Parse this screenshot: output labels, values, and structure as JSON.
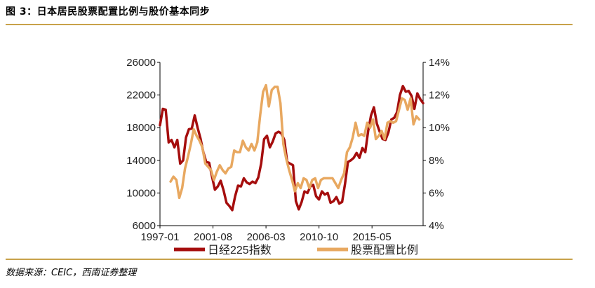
{
  "figure": {
    "title": "图 3：日本居民股票配置比例与股价基本同步",
    "source": "数据来源：CEIC，西南证券整理"
  },
  "chart_data": {
    "type": "line",
    "x_ticks": [
      "1997-01",
      "2001-08",
      "2006-03",
      "2010-10",
      "2015-05"
    ],
    "y_left": {
      "lim": [
        6000,
        26000
      ],
      "ticks": [
        6000,
        10000,
        14000,
        18000,
        22000,
        26000
      ],
      "tick_labels": [
        "6000",
        "10000",
        "14000",
        "18000",
        "22000",
        "26000"
      ]
    },
    "y_right": {
      "lim": [
        4,
        14
      ],
      "ticks": [
        4,
        6,
        8,
        10,
        12,
        14
      ],
      "tick_labels": [
        "4%",
        "6%",
        "8%",
        "10%",
        "12%",
        "14%"
      ]
    },
    "grid": false,
    "legend_position": "bottom",
    "series": [
      {
        "name": "日经225指数",
        "axis": "left",
        "color": "#a50d0d",
        "x": [
          "1997-01",
          "1997-04",
          "1997-07",
          "1997-10",
          "1998-01",
          "1998-04",
          "1998-07",
          "1998-10",
          "1999-01",
          "1999-04",
          "1999-07",
          "1999-10",
          "2000-01",
          "2000-04",
          "2000-07",
          "2000-10",
          "2001-01",
          "2001-04",
          "2001-07",
          "2001-10",
          "2002-01",
          "2002-04",
          "2002-07",
          "2002-10",
          "2003-01",
          "2003-04",
          "2003-07",
          "2003-10",
          "2004-01",
          "2004-04",
          "2004-07",
          "2004-10",
          "2005-01",
          "2005-04",
          "2005-07",
          "2005-10",
          "2006-01",
          "2006-04",
          "2006-07",
          "2006-10",
          "2007-01",
          "2007-04",
          "2007-07",
          "2007-10",
          "2008-01",
          "2008-04",
          "2008-07",
          "2008-10",
          "2009-01",
          "2009-04",
          "2009-07",
          "2009-10",
          "2010-01",
          "2010-04",
          "2010-07",
          "2010-10",
          "2011-01",
          "2011-04",
          "2011-07",
          "2011-10",
          "2012-01",
          "2012-04",
          "2012-07",
          "2012-10",
          "2013-01",
          "2013-04",
          "2013-07",
          "2013-10",
          "2014-01",
          "2014-04",
          "2014-07",
          "2014-10",
          "2015-01",
          "2015-04",
          "2015-07",
          "2015-10",
          "2016-01",
          "2016-04",
          "2016-07",
          "2016-10",
          "2017-01",
          "2017-04",
          "2017-07",
          "2017-10",
          "2018-01",
          "2018-04",
          "2018-07",
          "2018-10",
          "2019-01",
          "2019-04",
          "2019-07",
          "2019-10"
        ],
        "values": [
          18300,
          20300,
          20200,
          16200,
          16500,
          15600,
          16500,
          13600,
          14000,
          16800,
          17800,
          17900,
          19500,
          18000,
          16700,
          15000,
          13800,
          13700,
          12000,
          10400,
          10800,
          11500,
          10300,
          8800,
          8400,
          7900,
          9600,
          10900,
          10800,
          11800,
          11300,
          11100,
          11400,
          11200,
          11900,
          13600,
          16600,
          17000,
          15600,
          16300,
          17300,
          17500,
          17300,
          16500,
          13800,
          13600,
          13400,
          9000,
          7990,
          8900,
          10200,
          10000,
          10800,
          11000,
          9600,
          9200,
          10200,
          9800,
          10000,
          8800,
          9000,
          9500,
          8700,
          8900,
          11100,
          13800,
          14000,
          14300,
          14900,
          14300,
          15500,
          15000,
          17600,
          19500,
          20500,
          18500,
          17500,
          16600,
          16500,
          17400,
          19000,
          19200,
          19900,
          22000,
          23100,
          22400,
          22500,
          21900,
          20300,
          22200,
          21500,
          21000
        ]
      },
      {
        "name": "股票配置比例",
        "axis": "right",
        "color": "#e8a860",
        "x": [
          "1997-12",
          "1998-03",
          "1998-06",
          "1998-09",
          "1998-12",
          "1999-03",
          "1999-06",
          "1999-09",
          "1999-12",
          "2000-03",
          "2000-06",
          "2000-09",
          "2000-12",
          "2001-03",
          "2001-06",
          "2001-09",
          "2001-12",
          "2002-03",
          "2002-06",
          "2002-09",
          "2002-12",
          "2003-03",
          "2003-06",
          "2003-09",
          "2003-12",
          "2004-03",
          "2004-06",
          "2004-09",
          "2004-12",
          "2005-03",
          "2005-06",
          "2005-09",
          "2005-12",
          "2006-03",
          "2006-06",
          "2006-09",
          "2006-12",
          "2007-03",
          "2007-06",
          "2007-09",
          "2007-12",
          "2008-03",
          "2008-06",
          "2008-09",
          "2008-12",
          "2009-03",
          "2009-06",
          "2009-09",
          "2009-12",
          "2010-03",
          "2010-06",
          "2010-09",
          "2010-12",
          "2011-03",
          "2011-06",
          "2011-09",
          "2011-12",
          "2012-03",
          "2012-06",
          "2012-09",
          "2012-12",
          "2013-03",
          "2013-06",
          "2013-09",
          "2013-12",
          "2014-03",
          "2014-06",
          "2014-09",
          "2014-12",
          "2015-03",
          "2015-06",
          "2015-09",
          "2015-12",
          "2016-03",
          "2016-06",
          "2016-09",
          "2016-12",
          "2017-03",
          "2017-06",
          "2017-09",
          "2017-12",
          "2018-03",
          "2018-06",
          "2018-09",
          "2018-12",
          "2019-03",
          "2019-06"
        ],
        "values": [
          6.7,
          7.0,
          6.8,
          5.7,
          6.3,
          7.5,
          8.2,
          9.0,
          9.9,
          9.5,
          9.2,
          8.8,
          7.8,
          7.6,
          7.4,
          6.8,
          7.3,
          7.7,
          7.4,
          7.2,
          7.5,
          7.6,
          8.6,
          8.5,
          8.5,
          9.2,
          8.8,
          8.6,
          9.0,
          8.6,
          9.1,
          10.8,
          12.2,
          12.6,
          11.3,
          12.3,
          12.5,
          12.5,
          11.5,
          9.0,
          8.1,
          7.4,
          6.8,
          6.1,
          6.6,
          6.3,
          6.9,
          6.8,
          6.3,
          6.8,
          6.9,
          6.3,
          6.8,
          6.9,
          6.9,
          6.9,
          6.9,
          6.6,
          6.3,
          6.8,
          7.2,
          8.5,
          8.8,
          9.4,
          10.3,
          9.5,
          9.6,
          9.5,
          10.3,
          10.0,
          10.5,
          9.3,
          9.5,
          9.8,
          9.3,
          10.3,
          10.4,
          10.3,
          10.4,
          11.1,
          11.8,
          11.7,
          11.1,
          11.8,
          10.2,
          10.7,
          10.5
        ]
      }
    ]
  }
}
